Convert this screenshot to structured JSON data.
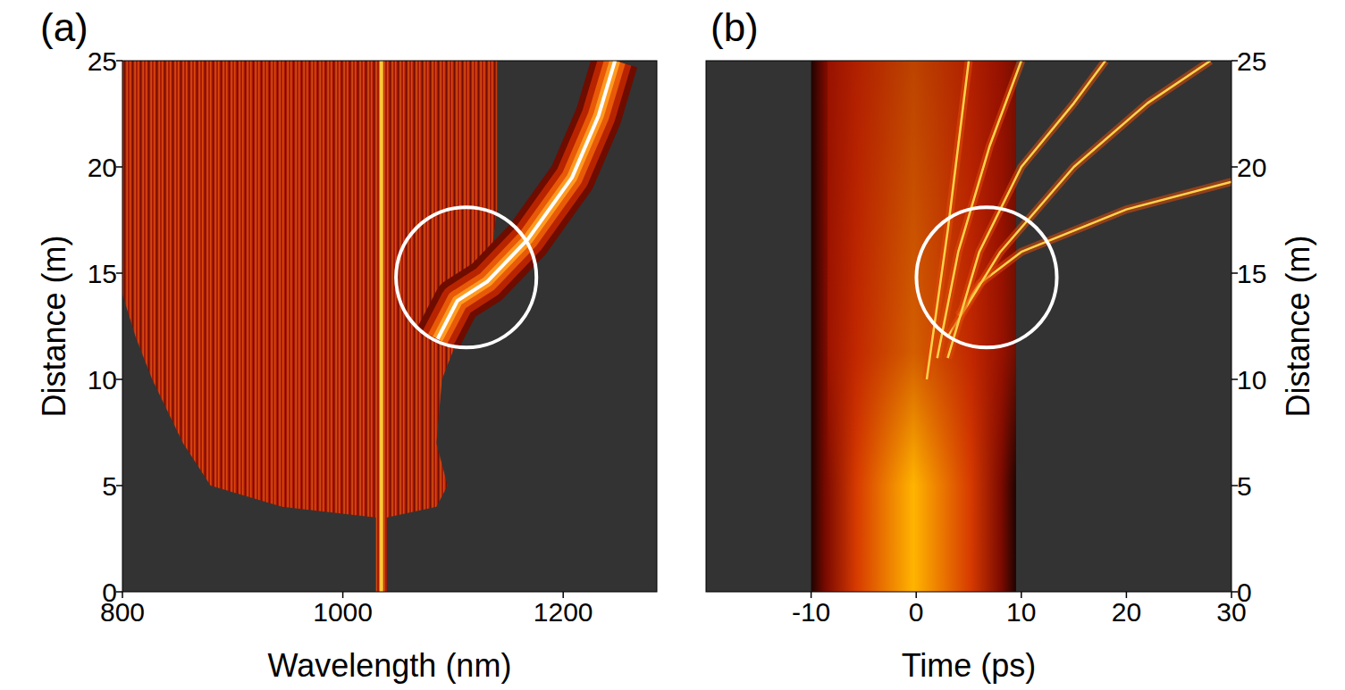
{
  "chart_data": [
    {
      "type": "heatmap",
      "panel": "(a)",
      "x_label": "Wavelength (nm)",
      "y_label": "Distance (m)",
      "xlim": [
        800,
        1285
      ],
      "ylim": [
        0,
        25
      ],
      "xticks": [
        800,
        1000,
        1200
      ],
      "yticks": [
        0,
        5,
        10,
        15,
        20,
        25
      ],
      "pump": {
        "x": 1035,
        "y": [
          0,
          25
        ]
      },
      "envelope": {
        "y": [
          0,
          3.5,
          4,
          5,
          7,
          10,
          12,
          14,
          16,
          18,
          20,
          22,
          25
        ],
        "x_min": [
          1030,
          1030,
          945,
          880,
          855,
          827,
          812,
          800,
          800,
          800,
          800,
          800,
          800
        ],
        "x_max": [
          1040,
          1040,
          1085,
          1095,
          1085,
          1090,
          1105,
          1125,
          1135,
          1140,
          1140,
          1140,
          1140
        ]
      },
      "trajectory": {
        "x": [
          1086,
          1104,
          1131,
          1168,
          1208,
          1232,
          1247
        ],
        "y": [
          11.9,
          13.7,
          14.6,
          16.6,
          19.5,
          22.4,
          25.0
        ]
      },
      "highlight": {
        "x": 1112,
        "y": 14.8,
        "radius": 3.3
      }
    },
    {
      "type": "heatmap",
      "panel": "(b)",
      "x_label": "Time (ps)",
      "y_label": "Distance (m)",
      "xlim": [
        -20,
        30
      ],
      "ylim": [
        0,
        25
      ],
      "xticks": [
        -10,
        0,
        10,
        20,
        30
      ],
      "yticks": [
        0,
        5,
        10,
        15,
        20,
        25
      ],
      "pulse": {
        "t_min": -10,
        "t_max": 9.5
      },
      "trajectories": [
        {
          "x": [
            4,
            6,
            10,
            20,
            30
          ],
          "y": [
            13,
            14.5,
            16,
            18,
            19.3
          ]
        },
        {
          "x": [
            3,
            8,
            15,
            22,
            28
          ],
          "y": [
            12,
            16,
            20,
            23,
            25
          ]
        },
        {
          "x": [
            3,
            6,
            10,
            15,
            18
          ],
          "y": [
            11,
            16,
            20,
            23,
            25
          ]
        },
        {
          "x": [
            2,
            4,
            7,
            10
          ],
          "y": [
            11,
            16,
            21,
            25
          ]
        },
        {
          "x": [
            1,
            3,
            5
          ],
          "y": [
            10,
            17,
            25
          ]
        }
      ],
      "highlight": {
        "x": 6.7,
        "y": 14.8,
        "radius": 3.3
      }
    }
  ]
}
